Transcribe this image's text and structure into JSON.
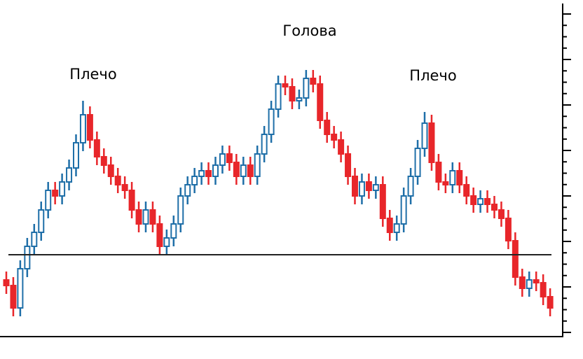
{
  "chart_data": {
    "type": "candlestick",
    "annotations": [
      "Плечо",
      "Голова",
      "Плечо"
    ],
    "up_color": "#1f6fa8",
    "down_color": "#e8262a",
    "ylim": [
      0,
      120
    ],
    "neckline": 29,
    "open": [
      20,
      18,
      10,
      24,
      32,
      37,
      45,
      52,
      50,
      55,
      60,
      69,
      79,
      70,
      64,
      61,
      57,
      54,
      52,
      45,
      40,
      45,
      40,
      32,
      35,
      40,
      50,
      54,
      57,
      59,
      57,
      61,
      65,
      62,
      57,
      61,
      57,
      65,
      72,
      81,
      90,
      89,
      84,
      85,
      92,
      90,
      77,
      72,
      70,
      65,
      57,
      50,
      55,
      52,
      54,
      42,
      37,
      40,
      50,
      57,
      67,
      76,
      62,
      55,
      54,
      59,
      54,
      50,
      47,
      49,
      47,
      45,
      42,
      34,
      21,
      17,
      20,
      19,
      14
    ],
    "high": [
      23,
      21,
      27,
      35,
      40,
      48,
      55,
      55,
      58,
      63,
      72,
      84,
      82,
      73,
      67,
      64,
      60,
      57,
      55,
      48,
      48,
      48,
      43,
      38,
      43,
      53,
      57,
      60,
      62,
      62,
      64,
      68,
      68,
      65,
      64,
      64,
      68,
      75,
      84,
      93,
      93,
      92,
      88,
      95,
      95,
      93,
      80,
      75,
      73,
      68,
      60,
      58,
      58,
      57,
      57,
      45,
      43,
      53,
      60,
      70,
      80,
      79,
      65,
      58,
      62,
      62,
      57,
      53,
      52,
      52,
      50,
      48,
      45,
      37,
      24,
      23,
      23,
      22,
      17
    ],
    "low": [
      15,
      7,
      7,
      21,
      29,
      34,
      42,
      47,
      47,
      52,
      57,
      66,
      67,
      61,
      58,
      54,
      51,
      49,
      42,
      37,
      37,
      37,
      29,
      29,
      32,
      37,
      47,
      51,
      54,
      54,
      54,
      58,
      59,
      54,
      54,
      54,
      54,
      62,
      69,
      78,
      86,
      81,
      81,
      82,
      87,
      74,
      69,
      67,
      62,
      54,
      47,
      47,
      49,
      49,
      39,
      34,
      34,
      37,
      47,
      54,
      64,
      59,
      52,
      51,
      51,
      51,
      47,
      44,
      44,
      44,
      42,
      39,
      31,
      18,
      14,
      14,
      16,
      11,
      7
    ],
    "close": [
      18,
      10,
      24,
      32,
      37,
      45,
      52,
      50,
      55,
      60,
      69,
      79,
      70,
      64,
      61,
      57,
      54,
      52,
      45,
      40,
      45,
      40,
      32,
      35,
      40,
      50,
      54,
      57,
      59,
      57,
      61,
      65,
      62,
      57,
      61,
      57,
      65,
      72,
      81,
      90,
      89,
      84,
      85,
      92,
      90,
      77,
      72,
      70,
      65,
      57,
      50,
      55,
      52,
      54,
      42,
      37,
      40,
      50,
      57,
      67,
      76,
      62,
      55,
      54,
      59,
      54,
      50,
      47,
      49,
      47,
      45,
      42,
      34,
      21,
      17,
      20,
      19,
      14,
      10
    ]
  }
}
